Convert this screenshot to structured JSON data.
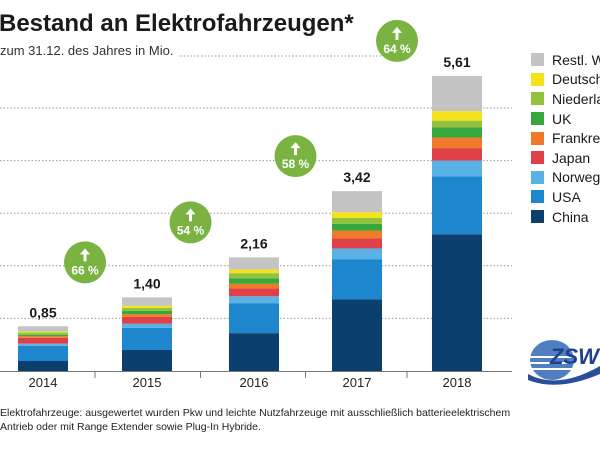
{
  "title": "Bestand an Elektrofahrzeugen*",
  "subtitle": "zum 31.12. des Jahres in Mio.",
  "footnote": [
    "Elektrofahrzeuge: ausgewertet wurden Pkw und leichte Nutzfahrzeuge mit ausschließlich batterieelektrischem",
    "Antrieb oder mit Range Extender sowie Plug-In Hybride."
  ],
  "logo_text": "ZSW",
  "chart_data": {
    "type": "bar",
    "stacked": true,
    "title": "Bestand an Elektrofahrzeugen*",
    "subtitle": "zum 31.12. des Jahres in Mio.",
    "ylim": [
      0,
      5.8
    ],
    "grid": true,
    "legend_position": "right",
    "categories": [
      "2014",
      "2015",
      "2016",
      "2017",
      "2018"
    ],
    "totals": [
      "0,85",
      "1,40",
      "2,16",
      "3,42",
      "5,61"
    ],
    "total_values": [
      0.85,
      1.4,
      2.16,
      3.42,
      5.61
    ],
    "growth": [
      null,
      "66 %",
      "54 %",
      "58 %",
      "64 %"
    ],
    "growth_color": "#7ab342",
    "series": [
      {
        "name": "China",
        "color": "#0b3f6e",
        "values": [
          0.19,
          0.4,
          0.72,
          1.36,
          2.6
        ]
      },
      {
        "name": "USA",
        "color": "#1d86cc",
        "values": [
          0.29,
          0.42,
          0.57,
          0.76,
          1.1
        ]
      },
      {
        "name": "Norweg",
        "color": "#5ab1e6",
        "values": [
          0.04,
          0.08,
          0.13,
          0.21,
          0.3
        ]
      },
      {
        "name": "Japan",
        "color": "#e04148",
        "values": [
          0.11,
          0.13,
          0.15,
          0.19,
          0.23
        ]
      },
      {
        "name": "Frankre",
        "color": "#f07a2a",
        "values": [
          0.03,
          0.05,
          0.09,
          0.15,
          0.21
        ]
      },
      {
        "name": "UK",
        "color": "#34a83c",
        "values": [
          0.03,
          0.06,
          0.1,
          0.13,
          0.19
        ]
      },
      {
        "name": "Niederla",
        "color": "#93c23c",
        "values": [
          0.04,
          0.06,
          0.1,
          0.11,
          0.13
        ]
      },
      {
        "name": "Deutsch",
        "color": "#f4e21d",
        "values": [
          0.02,
          0.04,
          0.07,
          0.11,
          0.18
        ]
      },
      {
        "name": "Restl. W",
        "color": "#c4c4c4",
        "values": [
          0.1,
          0.16,
          0.23,
          0.4,
          0.67
        ]
      }
    ]
  }
}
